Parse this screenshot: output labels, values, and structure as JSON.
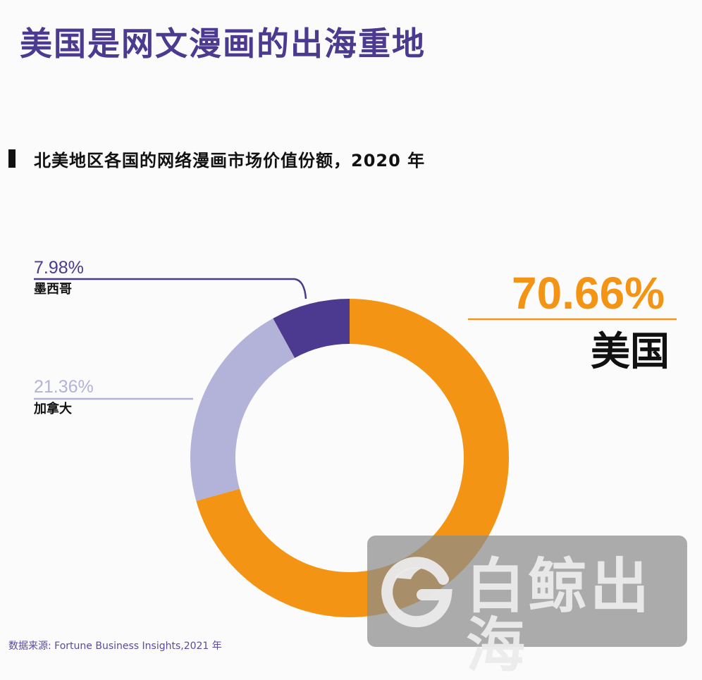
{
  "headline": "美国是网文漫画的出海重地",
  "chart_data": {
    "type": "pie",
    "subtitle": "北美地区各国的网络漫画市场价值份额，2020 年",
    "labels": [
      "美国",
      "加拿大",
      "墨西哥"
    ],
    "values": [
      70.66,
      21.36,
      7.98
    ],
    "value_labels": [
      "70.66%",
      "21.36%",
      "7.98%"
    ],
    "colors": [
      "#f39415",
      "#b3b3da",
      "#4b3a8f"
    ],
    "start_angle_deg": 0,
    "direction": "clockwise",
    "donut": true
  },
  "source": "数据来源: Fortune Business Insights,2021 年",
  "watermark": {
    "text": "白鲸出海",
    "logo_icon": "whale-g-logo-icon"
  }
}
